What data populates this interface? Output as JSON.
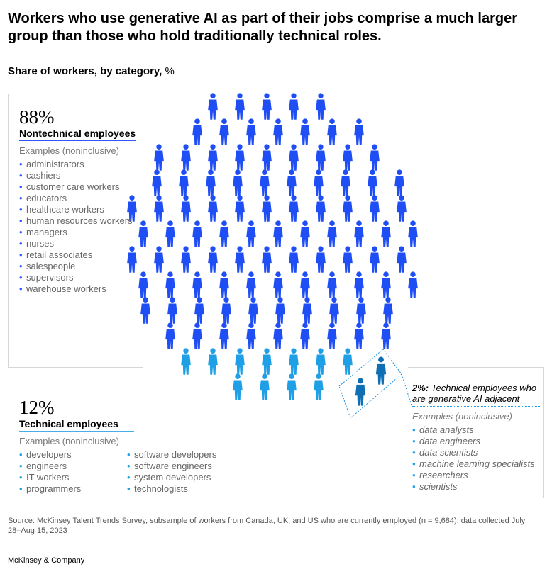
{
  "title": "Workers who use generative AI as part of their jobs comprise a much larger group than those who hold traditionally technical roles.",
  "subtitle": "Share of workers, by category,",
  "subtitle_unit": "%",
  "colors": {
    "nontechnical": "#1f4ef5",
    "technical": "#1fa0e6",
    "adjacent": "#1d8fe0",
    "frame": "#d6d6d6"
  },
  "nontechnical": {
    "pct": "88%",
    "label": "Nontechnical employees",
    "examples_label": "Examples (noninclusive)",
    "items": [
      "administrators",
      "cashiers",
      "customer care workers",
      "educators",
      "healthcare workers",
      "human resources workers",
      "managers",
      "nurses",
      "retail associates",
      "salespeople",
      "supervisors",
      "warehouse workers"
    ]
  },
  "technical": {
    "pct": "12%",
    "label": "Technical employees",
    "examples_label": "Examples (noninclusive)",
    "items_col1": [
      "developers",
      "engineers",
      "IT workers",
      "programmers"
    ],
    "items_col2": [
      "software developers",
      "software engineers",
      "system developers",
      "technologists"
    ]
  },
  "adjacent": {
    "pct": "2%:",
    "label": "Technical employees who are generative AI adjacent",
    "examples_label": "Examples (noninclusive)",
    "items": [
      "data analysts",
      "data engineers",
      "data scientists",
      "machine learning specialists",
      "researchers",
      "scientists"
    ]
  },
  "chart_data": {
    "type": "pictograph",
    "title": "Workers who use generative AI as part of their jobs comprise a much larger group than those who hold traditionally technical roles.",
    "subtitle": "Share of workers, by category, %",
    "categories": [
      "Nontechnical employees",
      "Technical employees",
      "Technical employees who are generative AI adjacent"
    ],
    "values": [
      88,
      12,
      2
    ]
  },
  "source": "Source: McKinsey Talent Trends Survey, subsample of workers from Canada, UK, and US who are currently employed (n = 9,684); data collected July 28–Aug 15, 2023",
  "brand": "McKinsey & Company"
}
